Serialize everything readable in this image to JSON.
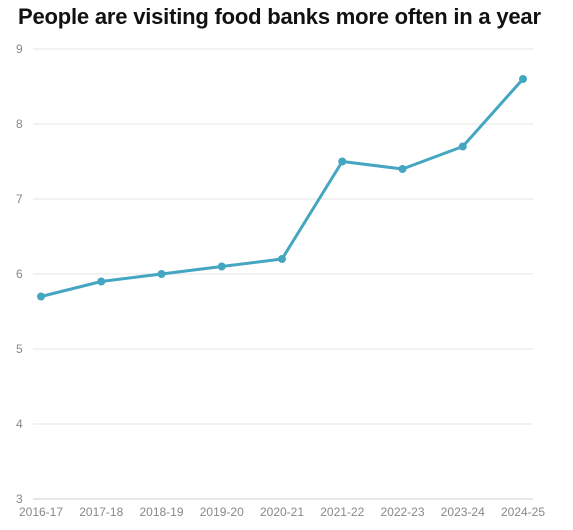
{
  "chart_data": {
    "type": "line",
    "title": "People are visiting food banks more often in a year",
    "xlabel": "",
    "ylabel": "",
    "categories": [
      "2016-17",
      "2017-18",
      "2018-19",
      "2019-20",
      "2020-21",
      "2021-22",
      "2022-23",
      "2023-24",
      "2024-25"
    ],
    "series": [
      {
        "values": [
          5.7,
          5.9,
          6.0,
          6.1,
          6.2,
          7.5,
          7.4,
          7.7,
          8.6
        ]
      }
    ],
    "ylim": [
      3,
      9
    ],
    "yticks": [
      3,
      4,
      5,
      6,
      7,
      8,
      9
    ],
    "grid": true,
    "legend": "none",
    "colors": {
      "line": "#45a6c2",
      "grid": "#e4e4e4",
      "tick_text": "#888888",
      "title_text": "#111111"
    }
  }
}
